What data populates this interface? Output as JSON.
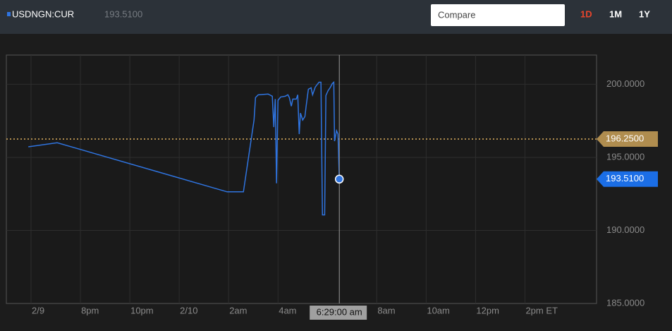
{
  "header": {
    "symbol": "USDNGN:CUR",
    "last_label": "193.5100"
  },
  "controls": {
    "compare": "Compare",
    "ranges": [
      "1D",
      "1M",
      "1Y"
    ]
  },
  "chart_data": {
    "type": "line",
    "x": [
      -0.11,
      1.06,
      7.94,
      8.6,
      9.03,
      9.09,
      9.2,
      9.6,
      9.77,
      9.83,
      9.89,
      9.94,
      10.0,
      10.11,
      10.29,
      10.4,
      10.46,
      10.54,
      10.6,
      10.74,
      10.8,
      10.86,
      10.91,
      11.0,
      11.09,
      11.14,
      11.23,
      11.34,
      11.4,
      11.51,
      11.66,
      11.74,
      11.8,
      11.89,
      11.94,
      12.03,
      12.11,
      12.2,
      12.26,
      12.29,
      12.37,
      12.43,
      12.4833
    ],
    "series": [
      {
        "name": "USDNGN:CUR",
        "color": "#2f74e0",
        "values": [
          195.72,
          196.0,
          192.64,
          192.64,
          197.55,
          199.09,
          199.28,
          199.33,
          199.18,
          197.07,
          198.99,
          193.22,
          198.9,
          199.13,
          199.18,
          199.28,
          199.09,
          198.5,
          198.99,
          198.99,
          199.28,
          196.59,
          198.03,
          197.55,
          197.79,
          198.5,
          199.66,
          199.76,
          199.28,
          199.81,
          200.14,
          200.14,
          191.06,
          191.06,
          199.23,
          199.57,
          199.76,
          200.05,
          200.14,
          196.11,
          196.83,
          196.59,
          193.51
        ]
      }
    ],
    "xlim": [
      -1,
      22.9
    ],
    "xticks": [
      {
        "value": 0,
        "label": "2/9"
      },
      {
        "value": 2,
        "label": "8pm"
      },
      {
        "value": 4,
        "label": "10pm"
      },
      {
        "value": 6,
        "label": "2/10"
      },
      {
        "value": 8,
        "label": "2am"
      },
      {
        "value": 10,
        "label": "4am"
      },
      {
        "value": 14,
        "label": "8am"
      },
      {
        "value": 16,
        "label": "10am"
      },
      {
        "value": 18,
        "label": "12pm"
      },
      {
        "value": 20,
        "label": "2pm ET"
      }
    ],
    "ylim": [
      185,
      202
    ],
    "yticks": [
      {
        "value": 185,
        "label": "185.0000"
      },
      {
        "value": 190,
        "label": "190.0000"
      },
      {
        "value": 195,
        "label": "195.0000"
      },
      {
        "value": 200,
        "label": "200.0000"
      }
    ],
    "reference_line": {
      "value": 196.25,
      "label": "196.2500",
      "color": "#b08d4f"
    },
    "crosshair": {
      "value": 12.4833,
      "label": "6:29:00 am"
    },
    "grid": true
  }
}
